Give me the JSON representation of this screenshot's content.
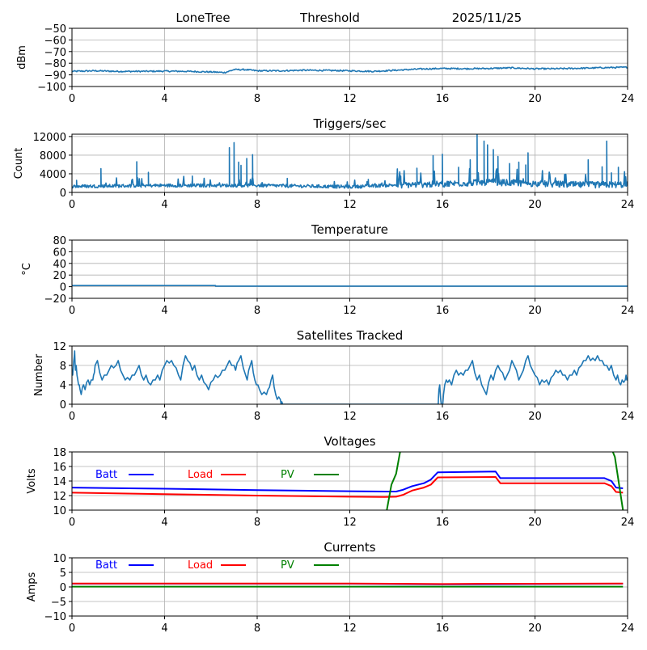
{
  "header": {
    "station": "LoneTree",
    "mode": "Threshold",
    "date": "2025/11/25"
  },
  "chart_data": [
    {
      "type": "line",
      "id": "signal",
      "title": "",
      "xlabel": "",
      "ylabel": "dBm",
      "xlim": [
        0,
        24
      ],
      "ylim": [
        -100,
        -50
      ],
      "xticks": [
        0,
        4,
        8,
        12,
        16,
        20,
        24
      ],
      "yticks": [
        -100,
        -90,
        -80,
        -70,
        -60,
        -50
      ],
      "ytick_labels": [
        "−100",
        "−90",
        "−80",
        "−70",
        "−60",
        "−50"
      ],
      "grid": true,
      "series": [
        {
          "name": "signal",
          "color": "#1f77b4",
          "x": [
            0,
            1,
            2,
            3,
            4,
            5,
            6,
            6.6,
            7,
            7.5,
            8,
            9,
            10,
            11,
            12,
            13,
            14,
            15,
            16,
            17,
            18,
            19,
            20,
            21,
            22,
            23,
            24
          ],
          "y": [
            -87,
            -86.5,
            -87,
            -87,
            -86.8,
            -87,
            -87.5,
            -88,
            -85.5,
            -85.5,
            -86.5,
            -86.5,
            -86,
            -86.2,
            -86.5,
            -87,
            -86,
            -85,
            -84.5,
            -84.7,
            -84.5,
            -84,
            -84.8,
            -84.7,
            -84.3,
            -83.8,
            -83.5
          ],
          "noise": 0.6
        }
      ]
    },
    {
      "type": "line",
      "id": "triggers",
      "title": "Triggers/sec",
      "xlabel": "",
      "ylabel": "Count",
      "xlim": [
        0,
        24
      ],
      "ylim": [
        0,
        12500
      ],
      "xticks": [
        0,
        4,
        8,
        12,
        16,
        20,
        24
      ],
      "yticks": [
        0,
        4000,
        8000,
        12000
      ],
      "ytick_labels": [
        "0",
        "4000",
        "8000",
        "12000"
      ],
      "grid": true,
      "series": [
        {
          "name": "triggers",
          "color": "#1f77b4",
          "baseline_x": [
            0,
            4,
            8,
            12,
            14,
            16,
            18,
            20,
            22,
            24
          ],
          "baseline_y": [
            1300,
            1500,
            1500,
            1200,
            1600,
            1800,
            2200,
            1900,
            1600,
            1700
          ],
          "spikes": [
            [
              0.2,
              2600
            ],
            [
              1.25,
              5100
            ],
            [
              2.8,
              6600
            ],
            [
              3.3,
              4300
            ],
            [
              5.2,
              3500
            ],
            [
              6.8,
              9600
            ],
            [
              7.0,
              10700
            ],
            [
              7.2,
              6500
            ],
            [
              7.3,
              5800
            ],
            [
              7.55,
              7300
            ],
            [
              7.8,
              8100
            ],
            [
              9.3,
              3000
            ],
            [
              12.8,
              2800
            ],
            [
              14.2,
              3500
            ],
            [
              14.9,
              5200
            ],
            [
              15.6,
              7900
            ],
            [
              16.0,
              8200
            ],
            [
              16.7,
              5400
            ],
            [
              17.2,
              7000
            ],
            [
              17.5,
              12500
            ],
            [
              17.8,
              11000
            ],
            [
              17.95,
              10200
            ],
            [
              18.2,
              9200
            ],
            [
              18.4,
              7700
            ],
            [
              18.9,
              6200
            ],
            [
              19.3,
              6500
            ],
            [
              19.6,
              5900
            ],
            [
              19.7,
              8500
            ],
            [
              22.3,
              7000
            ],
            [
              22.9,
              5500
            ],
            [
              23.1,
              11000
            ],
            [
              23.3,
              4200
            ],
            [
              23.6,
              5400
            ],
            [
              23.9,
              3200
            ]
          ],
          "noise": 700
        }
      ]
    },
    {
      "type": "line",
      "id": "temperature",
      "title": "Temperature",
      "xlabel": "",
      "ylabel": "°C",
      "xlim": [
        0,
        24
      ],
      "ylim": [
        -20,
        80
      ],
      "xticks": [
        0,
        4,
        8,
        12,
        16,
        20,
        24
      ],
      "yticks": [
        -20,
        0,
        20,
        40,
        60,
        80
      ],
      "ytick_labels": [
        "−20",
        "0",
        "20",
        "40",
        "60",
        "80"
      ],
      "grid": true,
      "series": [
        {
          "name": "temperature",
          "color": "#1f77b4",
          "x": [
            0,
            6.2,
            6.2,
            24
          ],
          "y": [
            2.0,
            2.0,
            1.0,
            1.0
          ]
        }
      ]
    },
    {
      "type": "line",
      "id": "satellites",
      "title": "Satellites Tracked",
      "xlabel": "",
      "ylabel": "Number",
      "xlim": [
        0,
        24
      ],
      "ylim": [
        0,
        12
      ],
      "xticks": [
        0,
        4,
        8,
        12,
        16,
        20,
        24
      ],
      "yticks": [
        0,
        4,
        8,
        12
      ],
      "ytick_labels": [
        "0",
        "4",
        "8",
        "12"
      ],
      "grid": true,
      "series": [
        {
          "name": "satellites",
          "color": "#1f77b4",
          "x": [
            0,
            0.1,
            0.15,
            0.25,
            0.35,
            0.5,
            0.7,
            0.9,
            1.0,
            1.3,
            1.6,
            1.9,
            2.2,
            2.5,
            2.8,
            3.1,
            3.4,
            3.7,
            4.0,
            4.3,
            4.6,
            4.9,
            5.2,
            5.5,
            5.8,
            6.1,
            6.4,
            6.7,
            7.0,
            7.2,
            7.5,
            7.7,
            7.9,
            8.1,
            8.4,
            8.6,
            8.8,
            9.0,
            9.1,
            15.8,
            15.85,
            15.95,
            16.1,
            16.3,
            16.6,
            16.9,
            17.2,
            17.5,
            17.8,
            18.1,
            18.4,
            18.7,
            19.0,
            19.3,
            19.6,
            19.9,
            20.2,
            20.5,
            20.8,
            21.1,
            21.4,
            21.7,
            22.0,
            22.3,
            22.6,
            22.9,
            23.2,
            23.5,
            23.7,
            23.9,
            24
          ],
          "y": [
            7,
            10,
            7,
            5,
            3,
            4,
            5,
            5,
            8,
            5,
            7,
            8,
            6,
            5,
            7,
            5,
            4,
            6,
            8,
            9,
            6,
            10,
            7,
            5,
            4,
            5,
            6,
            8,
            8,
            9,
            6,
            8,
            5,
            3,
            2,
            5,
            2,
            1,
            0,
            0,
            3,
            0,
            4,
            5,
            7,
            6,
            8,
            5,
            3,
            6,
            8,
            5,
            9,
            5,
            9,
            7,
            4,
            5,
            6,
            7,
            5,
            7,
            8,
            10,
            9,
            9,
            7,
            5,
            4,
            5,
            5
          ]
        }
      ]
    },
    {
      "type": "line",
      "id": "voltages",
      "title": "Voltages",
      "xlabel": "",
      "ylabel": "Volts",
      "xlim": [
        0,
        24
      ],
      "ylim": [
        10,
        18
      ],
      "xticks": [
        0,
        4,
        8,
        12,
        16,
        20,
        24
      ],
      "yticks": [
        10,
        12,
        14,
        16,
        18
      ],
      "ytick_labels": [
        "10",
        "12",
        "14",
        "16",
        "18"
      ],
      "grid": true,
      "legend": {
        "placement": "top-left-inline",
        "entries": [
          "Batt",
          "Load",
          "PV"
        ]
      },
      "series": [
        {
          "name": "Batt",
          "color": "#0000ff",
          "x": [
            0,
            4,
            8,
            12,
            13.5,
            14.0,
            14.3,
            14.7,
            15.2,
            15.5,
            15.8,
            18.3,
            18.5,
            23.0,
            23.3,
            23.5,
            23.8
          ],
          "y": [
            13.1,
            12.95,
            12.75,
            12.6,
            12.55,
            12.55,
            12.8,
            13.3,
            13.7,
            14.2,
            15.2,
            15.3,
            14.4,
            14.4,
            14.0,
            13.1,
            13.0
          ]
        },
        {
          "name": "Load",
          "color": "#ff0000",
          "x": [
            0,
            4,
            8,
            12,
            13.5,
            14.0,
            14.3,
            14.7,
            15.2,
            15.5,
            15.8,
            18.3,
            18.5,
            23.0,
            23.3,
            23.5,
            23.8
          ],
          "y": [
            12.4,
            12.2,
            12.0,
            11.85,
            11.8,
            11.85,
            12.1,
            12.7,
            13.1,
            13.5,
            14.5,
            14.55,
            13.7,
            13.7,
            13.3,
            12.5,
            12.4
          ]
        },
        {
          "name": "PV",
          "color": "#008000",
          "x": [
            13.6,
            13.8,
            14.0,
            14.2,
            23.3,
            23.45,
            23.8
          ],
          "y": [
            10,
            13.5,
            15.0,
            18.5,
            18.5,
            17.3,
            10
          ]
        }
      ]
    },
    {
      "type": "line",
      "id": "currents",
      "title": "Currents",
      "xlabel": "",
      "ylabel": "Amps",
      "xlim": [
        0,
        24
      ],
      "ylim": [
        -10,
        10
      ],
      "xticks": [
        0,
        4,
        8,
        12,
        16,
        20,
        24
      ],
      "yticks": [
        -10,
        -5,
        0,
        5,
        10
      ],
      "ytick_labels": [
        "−10",
        "−5",
        "0",
        "5",
        "10"
      ],
      "grid": true,
      "legend": {
        "placement": "top-left-inline",
        "entries": [
          "Batt",
          "Load",
          "PV"
        ]
      },
      "series": [
        {
          "name": "Batt",
          "color": "#0000ff",
          "x": [
            0,
            12,
            16,
            20,
            23.8
          ],
          "y": [
            1.1,
            1.1,
            0.9,
            1.0,
            1.1
          ]
        },
        {
          "name": "Load",
          "color": "#ff0000",
          "x": [
            0,
            12,
            16,
            18,
            20,
            23.8
          ],
          "y": [
            1.2,
            1.2,
            1.0,
            1.1,
            1.1,
            1.2
          ]
        },
        {
          "name": "PV",
          "color": "#008000",
          "x": [
            0,
            23.8
          ],
          "y": [
            0.1,
            0.1
          ]
        }
      ]
    }
  ]
}
